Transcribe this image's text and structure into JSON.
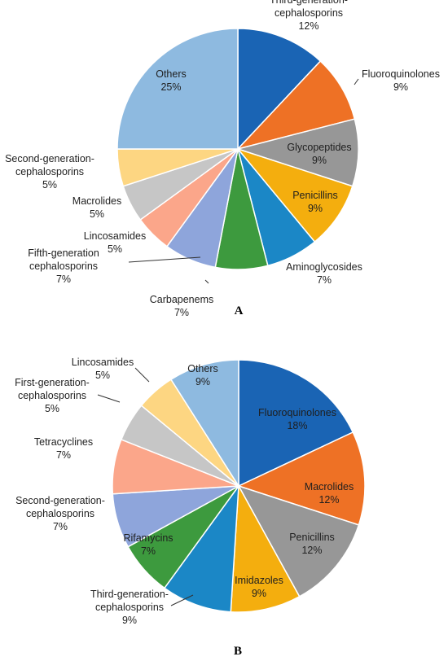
{
  "chart_data": [
    {
      "type": "pie",
      "panel_label": "A",
      "slices": [
        {
          "label": [
            "Third-generation-",
            "cephalosporins"
          ],
          "value": 12,
          "display": "12%",
          "color": "#1a64b4"
        },
        {
          "label": [
            "Fluoroquinolones"
          ],
          "value": 9,
          "display": "9%",
          "color": "#ee7125"
        },
        {
          "label": [
            "Glycopeptides"
          ],
          "value": 9,
          "display": "9%",
          "color": "#979797"
        },
        {
          "label": [
            "Penicillins"
          ],
          "value": 9,
          "display": "9%",
          "color": "#f4ae0e"
        },
        {
          "label": [
            "Aminoglycosides"
          ],
          "value": 7,
          "display": "7%",
          "color": "#1b87c6"
        },
        {
          "label": [
            "Carbapenems"
          ],
          "value": 7,
          "display": "7%",
          "color": "#3d9a3e"
        },
        {
          "label": [
            "Fifth-generation",
            "cephalosporins"
          ],
          "value": 7,
          "display": "7%",
          "color": "#8ea5db"
        },
        {
          "label": [
            "Lincosamides"
          ],
          "value": 5,
          "display": "5%",
          "color": "#fba68a"
        },
        {
          "label": [
            "Macrolides"
          ],
          "value": 5,
          "display": "5%",
          "color": "#c6c6c6"
        },
        {
          "label": [
            "Second-generation-",
            "cephalosporins"
          ],
          "value": 5,
          "display": "5%",
          "color": "#fdd682"
        },
        {
          "label": [
            "Others"
          ],
          "value": 25,
          "display": "25%",
          "color": "#8ebae0"
        }
      ]
    },
    {
      "type": "pie",
      "panel_label": "B",
      "slices": [
        {
          "label": [
            "Fluoroquinolones"
          ],
          "value": 18,
          "display": "18%",
          "color": "#1a64b4"
        },
        {
          "label": [
            "Macrolides"
          ],
          "value": 12,
          "display": "12%",
          "color": "#ee7125"
        },
        {
          "label": [
            "Penicillins"
          ],
          "value": 12,
          "display": "12%",
          "color": "#979797"
        },
        {
          "label": [
            "Imidazoles"
          ],
          "value": 9,
          "display": "9%",
          "color": "#f4ae0e"
        },
        {
          "label": [
            "Third-generation-",
            "cephalosporins"
          ],
          "value": 9,
          "display": "9%",
          "color": "#1b87c6"
        },
        {
          "label": [
            "Rifamycins"
          ],
          "value": 7,
          "display": "7%",
          "color": "#3d9a3e"
        },
        {
          "label": [
            "Second-generation-",
            "cephalosporins"
          ],
          "value": 7,
          "display": "7%",
          "color": "#8ea5db"
        },
        {
          "label": [
            "Tetracyclines"
          ],
          "value": 7,
          "display": "7%",
          "color": "#fba68a"
        },
        {
          "label": [
            "First-generation-",
            "cephalosporins"
          ],
          "value": 5,
          "display": "5%",
          "color": "#c6c6c6"
        },
        {
          "label": [
            "Lincosamides"
          ],
          "value": 5,
          "display": "5%",
          "color": "#fdd682"
        },
        {
          "label": [
            "Others"
          ],
          "value": 9,
          "display": "9%",
          "color": "#8ebae0"
        }
      ]
    }
  ]
}
